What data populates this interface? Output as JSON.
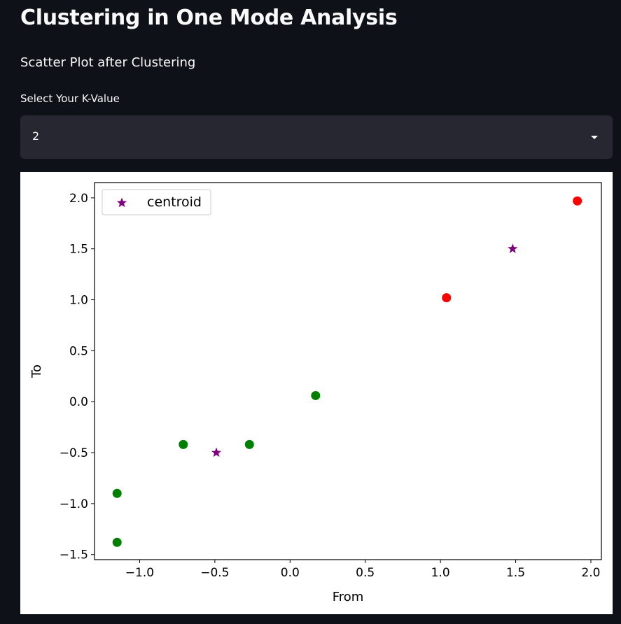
{
  "page": {
    "title": "Clustering in One Mode Analysis",
    "subtitle": "Scatter Plot after Clustering"
  },
  "k_select": {
    "label": "Select Your K-Value",
    "value": "2"
  },
  "colors": {
    "background": "#0e1117",
    "select_bg": "#262730",
    "cluster_0": "green",
    "cluster_1": "red",
    "centroid": "purple"
  },
  "chart_data": {
    "type": "scatter",
    "xlabel": "From",
    "ylabel": "To",
    "xlim": [
      -1.3,
      2.07
    ],
    "ylim": [
      -1.55,
      2.15
    ],
    "xticks": [
      -1.0,
      -0.5,
      0.0,
      0.5,
      1.0,
      1.5,
      2.0
    ],
    "xtick_labels": [
      "−1.0",
      "−0.5",
      "0.0",
      "0.5",
      "1.0",
      "1.5",
      "2.0"
    ],
    "yticks": [
      -1.5,
      -1.0,
      -0.5,
      0.0,
      0.5,
      1.0,
      1.5,
      2.0
    ],
    "ytick_labels": [
      "−1.5",
      "−1.0",
      "−0.5",
      "0.0",
      "0.5",
      "1.0",
      "1.5",
      "2.0"
    ],
    "grid": false,
    "legend": {
      "position": "upper-left",
      "entries": [
        "centroid"
      ]
    },
    "series": [
      {
        "marker": "circle",
        "color": "green",
        "points": [
          {
            "x": -1.15,
            "y": -0.9
          },
          {
            "x": -1.15,
            "y": -1.38
          },
          {
            "x": -0.71,
            "y": -0.42
          },
          {
            "x": -0.27,
            "y": -0.42
          },
          {
            "x": 0.17,
            "y": 0.06
          }
        ]
      },
      {
        "marker": "circle",
        "color": "red",
        "points": [
          {
            "x": 1.04,
            "y": 1.02
          },
          {
            "x": 1.91,
            "y": 1.97
          }
        ]
      },
      {
        "name": "centroid",
        "marker": "star",
        "color": "purple",
        "points": [
          {
            "x": -0.49,
            "y": -0.5
          },
          {
            "x": 1.48,
            "y": 1.5
          }
        ]
      }
    ]
  }
}
